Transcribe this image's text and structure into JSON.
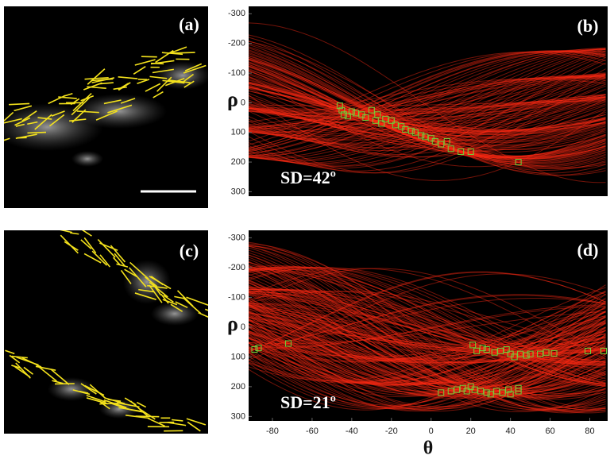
{
  "images": [
    {
      "label": "(a)"
    },
    {
      "label": "(c)"
    }
  ],
  "chart_data": [
    {
      "type": "scatter",
      "label": "(b)",
      "annotation": "SD=42º",
      "ylabel": "ρ",
      "xlim": [
        -92,
        89
      ],
      "ylim": [
        -325,
        315
      ],
      "yticks": [
        -300,
        -200,
        -100,
        0,
        100,
        200,
        300
      ],
      "curve_color": "#ff2a14",
      "series": [
        {
          "color": "#6fd23a",
          "x": [
            -46,
            -45,
            -44,
            -42,
            -40,
            -38,
            -35,
            -33,
            -30,
            -28,
            -27,
            -25,
            -23,
            -20,
            -18,
            -15,
            -13,
            -10,
            -8,
            -5,
            -3,
            0,
            2,
            5,
            8,
            10,
            15,
            20,
            44
          ],
          "values": [
            10,
            25,
            40,
            45,
            30,
            35,
            40,
            50,
            25,
            60,
            40,
            70,
            55,
            60,
            75,
            80,
            90,
            95,
            100,
            110,
            115,
            120,
            130,
            140,
            130,
            155,
            165,
            165,
            200
          ]
        }
      ]
    },
    {
      "type": "scatter",
      "label": "(d)",
      "annotation": "SD=21º",
      "ylabel": "ρ",
      "xlabel": "θ",
      "xlim": [
        -92,
        89
      ],
      "ylim": [
        -325,
        315
      ],
      "yticks": [
        -300,
        -200,
        -100,
        0,
        100,
        200,
        300
      ],
      "xticks": [
        -80,
        -60,
        -40,
        -20,
        0,
        20,
        40,
        60,
        80
      ],
      "curve_color": "#ff2a14",
      "series": [
        {
          "color": "#6fd23a",
          "x": [
            -89,
            -87,
            -72,
            21,
            23,
            26,
            28,
            32,
            35,
            38,
            40,
            42,
            45,
            48,
            50,
            55,
            58,
            62,
            79,
            87,
            5,
            10,
            13,
            16,
            18,
            20,
            22,
            25,
            28,
            30,
            33,
            36,
            39,
            40,
            44,
            44
          ],
          "values": [
            75,
            70,
            55,
            60,
            80,
            70,
            75,
            85,
            80,
            75,
            90,
            100,
            90,
            95,
            90,
            90,
            85,
            88,
            80,
            80,
            220,
            215,
            210,
            205,
            215,
            200,
            210,
            215,
            220,
            225,
            215,
            220,
            210,
            225,
            215,
            205
          ]
        }
      ]
    }
  ]
}
